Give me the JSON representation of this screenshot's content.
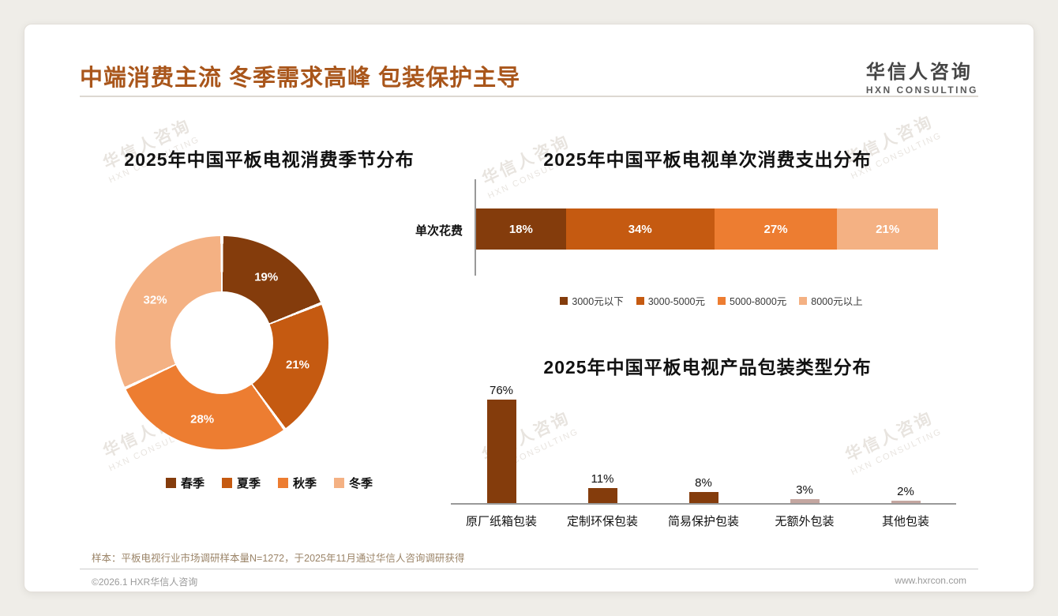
{
  "page": {
    "title": "中端消费主流 冬季需求高峰 包装保护主导",
    "logo": {
      "name": "华信人咨询",
      "sub": "HXN CONSULTING"
    },
    "footnote": "样本：平板电视行业市场调研样本量N=1272，于2025年11月通过华信人咨询调研获得",
    "copyright": "©2026.1 HXR华信人咨询",
    "website": "www.hxrcon.com",
    "watermark": {
      "line1": "华信人咨询",
      "line2": "HXN CONSULTING"
    }
  },
  "colors": {
    "accent_title": "#A9561B",
    "dark_brown": "#843C0C",
    "mid_brown": "#C55A11",
    "orange": "#ED7D31",
    "light_orange": "#F4B183",
    "muted_gray": "#C4A6A0"
  },
  "chart_data": [
    {
      "type": "pie",
      "donut": true,
      "title": "2025年中国平板电视消费季节分布",
      "categories": [
        "春季",
        "夏季",
        "秋季",
        "冬季"
      ],
      "values": [
        19,
        21,
        28,
        32
      ],
      "labels": [
        "19%",
        "21%",
        "28%",
        "32%"
      ],
      "colors": [
        "#843C0C",
        "#C55A11",
        "#ED7D31",
        "#F4B183"
      ],
      "legend_position": "bottom"
    },
    {
      "type": "bar",
      "orientation": "horizontal-stacked",
      "title": "2025年中国平板电视单次消费支出分布",
      "row_label": "单次花费",
      "xlim": [
        0,
        100
      ],
      "labels": [
        "18%",
        "34%",
        "27%",
        "21%"
      ],
      "series": [
        {
          "name": "3000元以下",
          "value": 18,
          "color": "#843C0C"
        },
        {
          "name": "3000-5000元",
          "value": 34,
          "color": "#C55A11"
        },
        {
          "name": "5000-8000元",
          "value": 27,
          "color": "#ED7D31"
        },
        {
          "name": "8000元以上",
          "value": 21,
          "color": "#F4B183"
        }
      ],
      "legend_position": "bottom"
    },
    {
      "type": "bar",
      "orientation": "vertical",
      "title": "2025年中国平板电视产品包装类型分布",
      "categories": [
        "原厂纸箱包装",
        "定制环保包装",
        "简易保护包装",
        "无额外包装",
        "其他包装"
      ],
      "values": [
        76,
        11,
        8,
        3,
        2
      ],
      "labels": [
        "76%",
        "11%",
        "8%",
        "3%",
        "2%"
      ],
      "colors": [
        "#843C0C",
        "#843C0C",
        "#843C0C",
        "#C4A6A0",
        "#C4A6A0"
      ],
      "ylim": [
        0,
        90
      ]
    }
  ]
}
